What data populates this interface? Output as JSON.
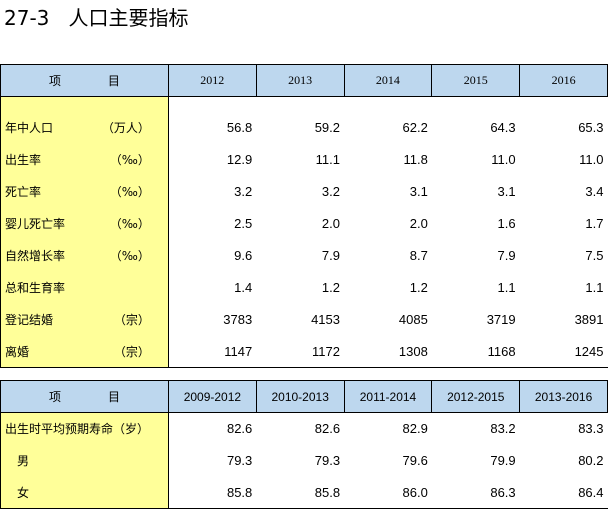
{
  "title": "27-3   人口主要指标",
  "table1": {
    "header_item": [
      "项",
      "目"
    ],
    "years": [
      "2012",
      "2013",
      "2014",
      "2015",
      "2016"
    ],
    "rows": [
      {
        "label": "年中人口",
        "unit": "（万人）",
        "values": [
          "56.8",
          "59.2",
          "62.2",
          "64.3",
          "65.3"
        ]
      },
      {
        "label": "出生率",
        "unit": "（‰）",
        "values": [
          "12.9",
          "11.1",
          "11.8",
          "11.0",
          "11.0"
        ]
      },
      {
        "label": "死亡率",
        "unit": "（‰）",
        "values": [
          "3.2",
          "3.2",
          "3.1",
          "3.1",
          "3.4"
        ]
      },
      {
        "label": "婴儿死亡率",
        "unit": "（‰）",
        "values": [
          "2.5",
          "2.0",
          "2.0",
          "1.6",
          "1.7"
        ]
      },
      {
        "label": "自然增长率",
        "unit": "（‰）",
        "values": [
          "9.6",
          "7.9",
          "8.7",
          "7.9",
          "7.5"
        ]
      },
      {
        "label": "总和生育率",
        "unit": "",
        "values": [
          "1.4",
          "1.2",
          "1.2",
          "1.1",
          "1.1"
        ]
      },
      {
        "label": "登记结婚",
        "unit": "（宗）",
        "values": [
          "3783",
          "4153",
          "4085",
          "3719",
          "3891"
        ]
      },
      {
        "label": "离婚",
        "unit": "（宗）",
        "values": [
          "1147",
          "1172",
          "1308",
          "1168",
          "1245"
        ]
      }
    ]
  },
  "table2": {
    "header_item": [
      "项",
      "目"
    ],
    "periods": [
      "2009-2012",
      "2010-2013",
      "2011-2014",
      "2012-2015",
      "2013-2016"
    ],
    "rows": [
      {
        "label": "出生时平均预期寿命（岁）",
        "values": [
          "82.6",
          "82.6",
          "82.9",
          "83.2",
          "83.3"
        ]
      },
      {
        "label": "男",
        "values": [
          "79.3",
          "79.3",
          "79.6",
          "79.9",
          "80.2"
        ]
      },
      {
        "label": "女",
        "values": [
          "85.8",
          "85.8",
          "86.0",
          "86.3",
          "86.4"
        ]
      }
    ]
  },
  "colors": {
    "header_bg": "#bdd7ee",
    "label_bg": "#ffff99"
  }
}
